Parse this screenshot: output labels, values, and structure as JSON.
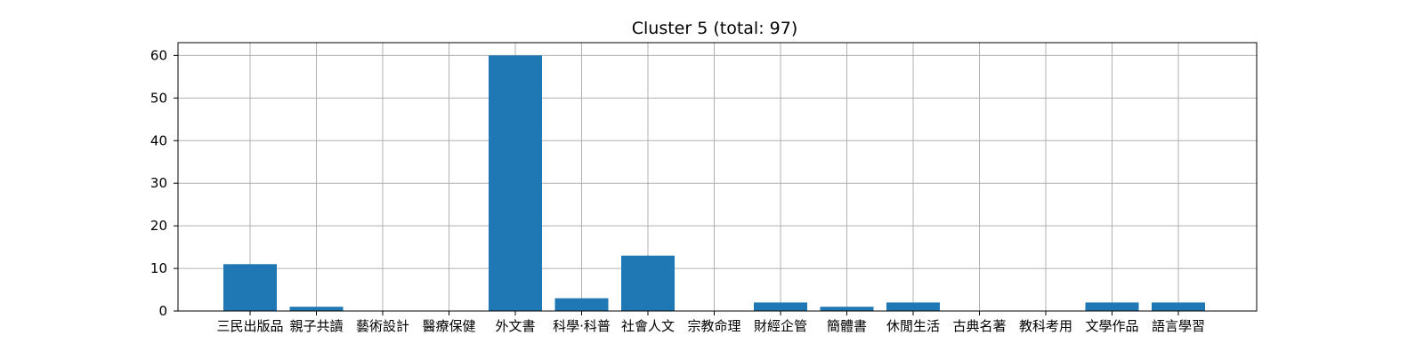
{
  "chart_data": {
    "type": "bar",
    "title": "Cluster 5 (total: 97)",
    "xlabel": "",
    "ylabel": "",
    "categories": [
      "三民出版品",
      "親子共讀",
      "藝術設計",
      "醫療保健",
      "外文書",
      "科學·科普",
      "社會人文",
      "宗教命理",
      "財經企管",
      "簡體書",
      "休閒生活",
      "古典名著",
      "教科考用",
      "文學作品",
      "語言學習"
    ],
    "values": [
      11,
      1,
      0,
      0,
      60,
      3,
      13,
      0,
      2,
      1,
      2,
      0,
      0,
      2,
      2
    ],
    "ylim": [
      0,
      63
    ],
    "yticks": [
      0,
      10,
      20,
      30,
      40,
      50,
      60
    ],
    "grid": true,
    "legend": "none",
    "colors": {
      "bar": "#1f77b4",
      "grid": "#b0b0b0",
      "axis": "#000000"
    }
  }
}
